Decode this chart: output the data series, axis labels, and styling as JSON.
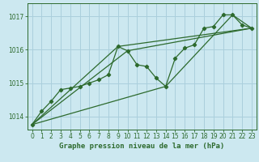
{
  "title": "Graphe pression niveau de la mer (hPa)",
  "bg_color": "#cce8f0",
  "grid_color": "#aacfdc",
  "line_color": "#2d6a2d",
  "marker_color": "#2d6a2d",
  "xlim": [
    -0.5,
    23.5
  ],
  "ylim": [
    1013.6,
    1017.4
  ],
  "yticks": [
    1014,
    1015,
    1016,
    1017
  ],
  "xticks": [
    0,
    1,
    2,
    3,
    4,
    5,
    6,
    7,
    8,
    9,
    10,
    11,
    12,
    13,
    14,
    15,
    16,
    17,
    18,
    19,
    20,
    21,
    22,
    23
  ],
  "series1_x": [
    0,
    1,
    2,
    3,
    4,
    5,
    6,
    7,
    8,
    9,
    10,
    11,
    12,
    13,
    14,
    15,
    16,
    17,
    18,
    19,
    20,
    21,
    22,
    23
  ],
  "series1_y": [
    1013.75,
    1014.15,
    1014.45,
    1014.8,
    1014.85,
    1014.9,
    1015.0,
    1015.1,
    1015.25,
    1016.1,
    1015.97,
    1015.55,
    1015.5,
    1015.15,
    1014.9,
    1015.75,
    1016.05,
    1016.15,
    1016.65,
    1016.7,
    1017.05,
    1017.05,
    1016.75,
    1016.65
  ],
  "series2_x": [
    0,
    9,
    23
  ],
  "series2_y": [
    1013.75,
    1016.1,
    1016.65
  ],
  "series3_x": [
    0,
    10,
    23
  ],
  "series3_y": [
    1013.75,
    1015.97,
    1016.65
  ],
  "series4_x": [
    0,
    14,
    21,
    23
  ],
  "series4_y": [
    1013.75,
    1014.9,
    1017.05,
    1016.65
  ],
  "ylabel_fontsize": 5.5,
  "xlabel_fontsize": 5.5,
  "title_fontsize": 6.5
}
